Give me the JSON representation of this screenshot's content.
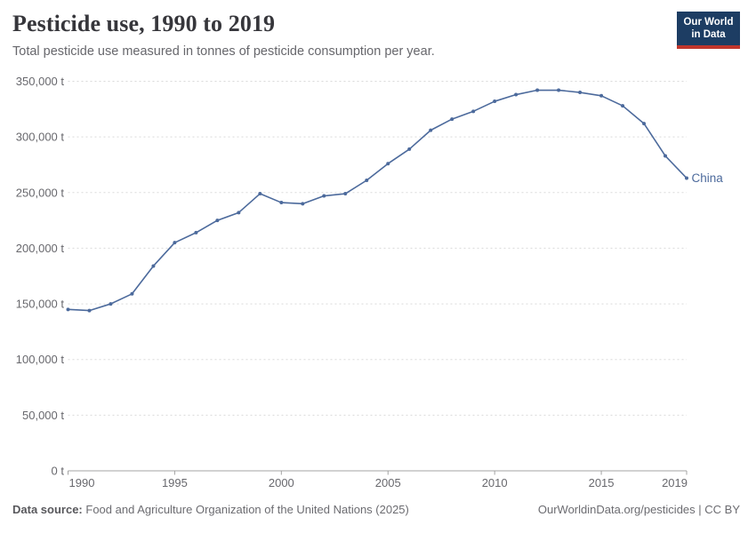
{
  "header": {
    "title": "Pesticide use, 1990 to 2019",
    "subtitle": "Total pesticide use measured in tonnes of pesticide consumption per year.",
    "logo": {
      "line1": "Our World",
      "line2": "in Data"
    }
  },
  "chart_data": {
    "type": "line",
    "title": "Pesticide use, 1990 to 2019",
    "xlabel": "",
    "ylabel": "",
    "unit": "t",
    "y_tick_suffix": " t",
    "x_min": 1990,
    "x_max": 2019,
    "ylim": [
      0,
      350000
    ],
    "grid": true,
    "x_ticks": [
      1990,
      1995,
      2000,
      2005,
      2010,
      2015,
      2019
    ],
    "y_ticks": [
      0,
      50000,
      100000,
      150000,
      200000,
      250000,
      300000,
      350000
    ],
    "series": [
      {
        "name": "China",
        "color": "#4C6A9C",
        "x": [
          1990,
          1991,
          1992,
          1993,
          1994,
          1995,
          1996,
          1997,
          1998,
          1999,
          2000,
          2001,
          2002,
          2003,
          2004,
          2005,
          2006,
          2007,
          2008,
          2009,
          2010,
          2011,
          2012,
          2013,
          2014,
          2015,
          2016,
          2017,
          2018,
          2019
        ],
        "values": [
          145000,
          144000,
          150000,
          159000,
          184000,
          205000,
          214000,
          225000,
          232000,
          249000,
          241000,
          240000,
          247000,
          249000,
          261000,
          276000,
          289000,
          306000,
          316000,
          323000,
          332000,
          338000,
          342000,
          342000,
          340000,
          337000,
          328000,
          312000,
          283000,
          263000
        ]
      }
    ],
    "colors": {
      "grid": "#dadada",
      "axis": "#a3a3a3",
      "tick_text": "#68686d"
    }
  },
  "footer": {
    "datasource_label": "Data source:",
    "datasource_text": "Food and Agriculture Organization of the United Nations (2025)",
    "right": "OurWorldinData.org/pesticides | CC BY"
  }
}
